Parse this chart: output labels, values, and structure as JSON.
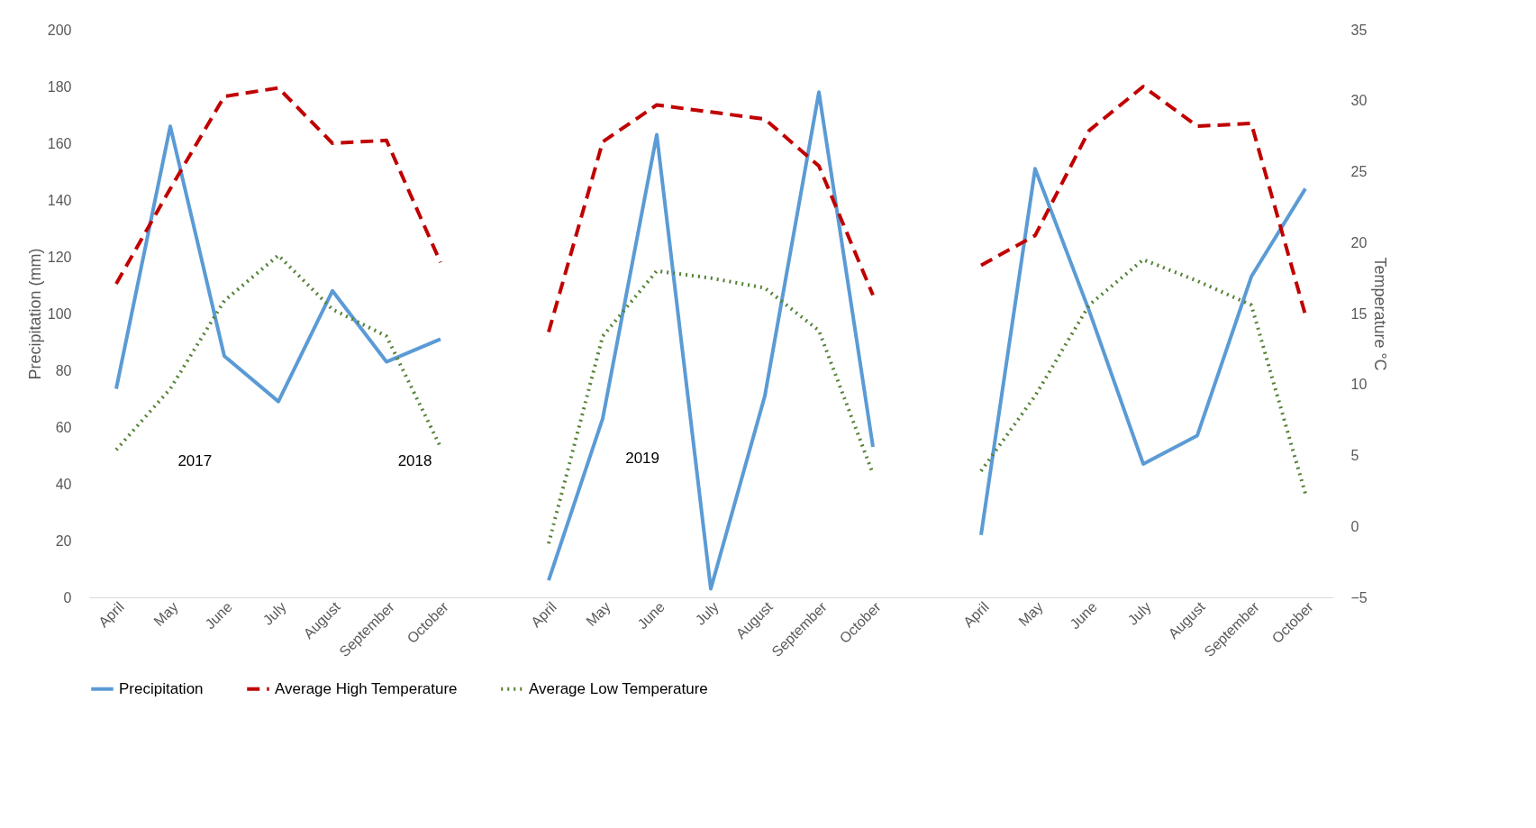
{
  "chart_data": {
    "type": "line",
    "categories": [
      "April",
      "May",
      "June",
      "July",
      "August",
      "September",
      "October",
      null,
      "April",
      "May",
      "June",
      "July",
      "August",
      "September",
      "October",
      null,
      "April",
      "May",
      "June",
      "July",
      "August",
      "September",
      "October"
    ],
    "series": [
      {
        "name": "Precipitation",
        "color": "#5b9bd5",
        "line_style": "solid",
        "values": [
          73.5,
          166,
          85,
          69,
          108,
          83,
          91,
          null,
          6,
          63,
          163,
          3,
          71,
          178,
          53,
          null,
          22,
          151,
          101,
          47,
          57,
          113,
          144
        ]
      },
      {
        "name": "Average High Temperature",
        "color": "#c00000",
        "line_style": "dashed",
        "axis": "y2",
        "values": [
          17.1,
          23.8,
          30.3,
          30.9,
          27.0,
          27.2,
          18.6,
          null,
          13.7,
          27.1,
          29.7,
          29.2,
          28.7,
          25.4,
          16.3,
          null,
          18.4,
          20.5,
          27.9,
          31.0,
          28.2,
          28.4,
          14.9
        ]
      },
      {
        "name": "Average Low Temperature",
        "color": "#548235",
        "line_style": "dotted",
        "axis": "y2",
        "values": [
          5.4,
          9.7,
          15.9,
          19.1,
          15.3,
          13.4,
          5.6,
          null,
          -1.2,
          13.4,
          18.0,
          17.5,
          16.8,
          13.8,
          3.7,
          null,
          3.9,
          9.2,
          15.6,
          18.8,
          17.3,
          15.6,
          2.3
        ]
      }
    ],
    "ylabel": "Precipitation (mm)",
    "y2label": "Temperature °C",
    "ylim": [
      0,
      200
    ],
    "yticks": [
      0,
      20,
      40,
      60,
      80,
      100,
      120,
      140,
      160,
      180,
      200
    ],
    "y2lim": [
      -5,
      35
    ],
    "y2ticks": [
      -5,
      0,
      5,
      10,
      15,
      20,
      25,
      30,
      35
    ],
    "annotations": [
      "2017",
      "2018",
      "2019"
    ],
    "legend": "bottom",
    "grid": false,
    "marker": "none"
  }
}
